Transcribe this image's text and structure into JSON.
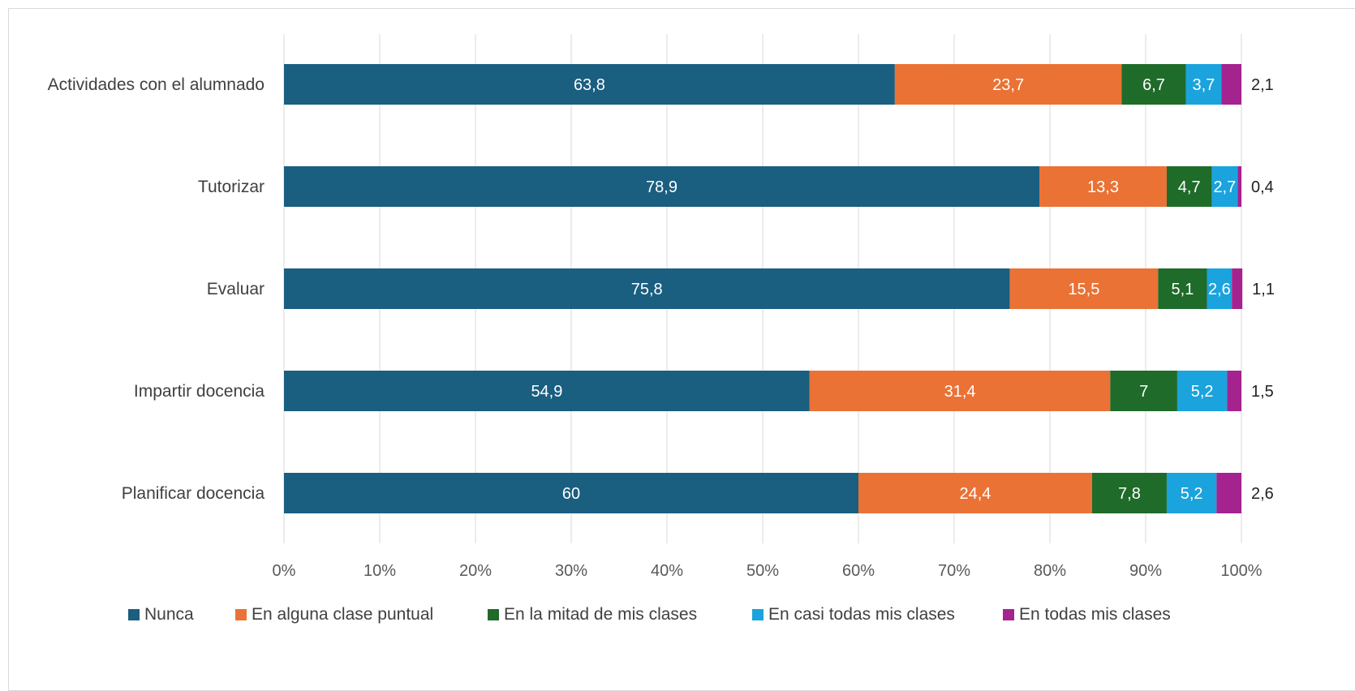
{
  "chart_data": {
    "type": "bar",
    "orientation": "horizontal",
    "stacked": true,
    "percent_stacked": true,
    "categories": [
      "Actividades con el alumnado",
      "Tutorizar",
      "Evaluar",
      "Impartir docencia",
      "Planificar docencia"
    ],
    "series": [
      {
        "name": "Nunca",
        "color": "#1a5e80",
        "values": [
          63.8,
          78.9,
          75.8,
          54.9,
          60
        ],
        "labels": [
          "63,8",
          "78,9",
          "75,8",
          "54,9",
          "60"
        ]
      },
      {
        "name": "En alguna clase puntual",
        "color": "#ea7235",
        "values": [
          23.7,
          13.3,
          15.5,
          31.4,
          24.4
        ],
        "labels": [
          "23,7",
          "13,3",
          "15,5",
          "31,4",
          "24,4"
        ]
      },
      {
        "name": "En la mitad de mis clases",
        "color": "#1f6b2a",
        "values": [
          6.7,
          4.7,
          5.1,
          7,
          7.8
        ],
        "labels": [
          "6,7",
          "4,7",
          "5,1",
          "7",
          "7,8"
        ]
      },
      {
        "name": "En casi todas mis clases",
        "color": "#1aa3dd",
        "values": [
          3.7,
          2.7,
          2.6,
          5.2,
          5.2
        ],
        "labels": [
          "3,7",
          "2,7",
          "2,6",
          "5,2",
          "5,2"
        ]
      },
      {
        "name": "En todas mis clases",
        "color": "#a4238f",
        "values": [
          2.1,
          0.4,
          1.1,
          1.5,
          2.6
        ],
        "labels": [
          "2,1",
          "0,4",
          "1,1",
          "1,5",
          "2,6"
        ]
      }
    ],
    "xlim": [
      0,
      100
    ],
    "xticks": [
      "0%",
      "10%",
      "20%",
      "30%",
      "40%",
      "50%",
      "60%",
      "70%",
      "80%",
      "90%",
      "100%"
    ],
    "title": "",
    "xlabel": "",
    "ylabel": "",
    "grid": "vertical",
    "legend": "bottom"
  }
}
